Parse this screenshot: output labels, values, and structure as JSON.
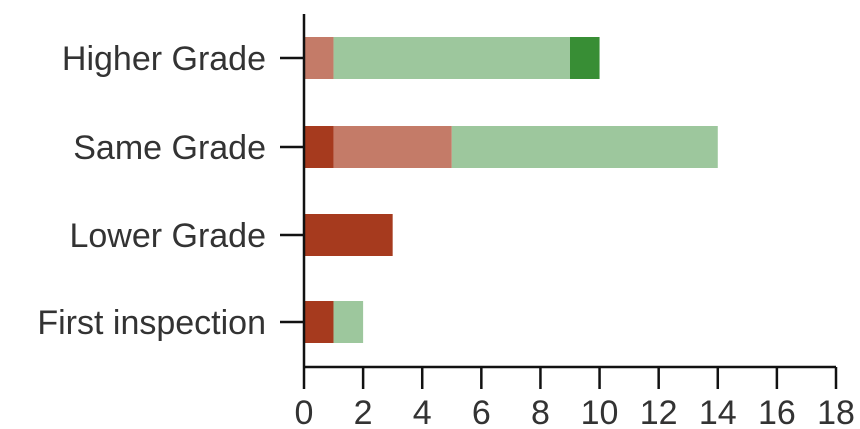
{
  "chart_data": {
    "type": "bar",
    "orientation": "horizontal",
    "stacked": true,
    "categories": [
      "Higher Grade",
      "Same Grade",
      "Lower Grade",
      "First inspection"
    ],
    "series": [
      {
        "color": "#a63a1e",
        "values": [
          0,
          1,
          3,
          1
        ]
      },
      {
        "color": "#c47b68",
        "values": [
          1,
          4,
          0,
          0
        ]
      },
      {
        "color": "#9dc79d",
        "values": [
          8,
          9,
          0,
          1
        ]
      },
      {
        "color": "#388e35",
        "values": [
          1,
          0,
          0,
          0
        ]
      }
    ],
    "x_ticks": [
      "0",
      "2",
      "4",
      "6",
      "8",
      "10",
      "12",
      "14",
      "16",
      "18"
    ],
    "xlim": [
      0,
      18
    ],
    "grid": false,
    "title": "",
    "xlabel": "",
    "ylabel": ""
  }
}
